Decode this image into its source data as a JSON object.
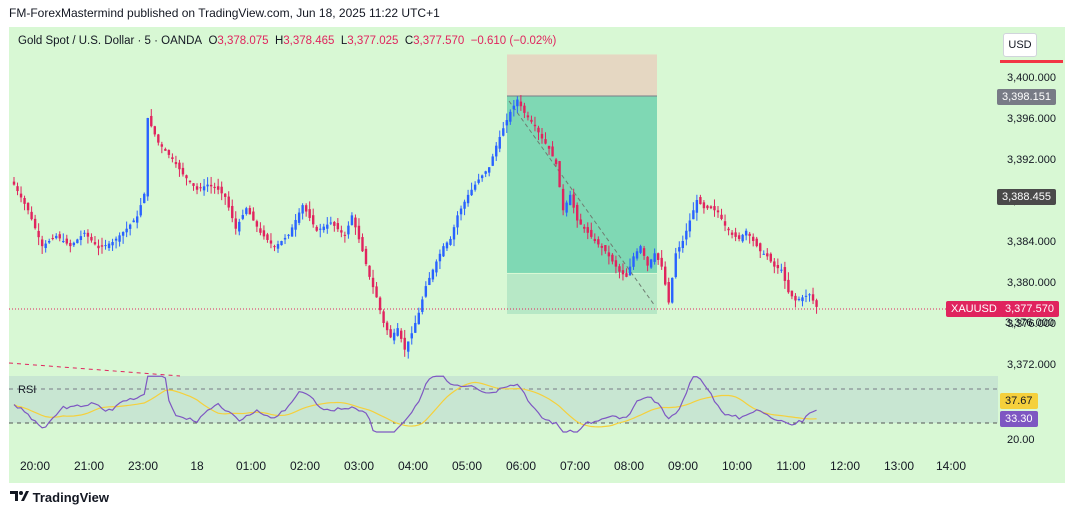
{
  "header": {
    "text": "FM-ForexMastermind published on TradingView.com, Jun 18, 2025 11:22 UTC+1"
  },
  "legend": {
    "symbol": "Gold Spot / U.S. Dollar · 5 · OANDA",
    "o_key": "O",
    "o_val": "3,378.075",
    "h_key": "H",
    "h_val": "3,378.465",
    "l_key": "L",
    "l_val": "3,377.025",
    "c_key": "C",
    "c_val": "3,377.570",
    "chg": "−0.610 (−0.02%)"
  },
  "currency_button": "USD",
  "price_tags": {
    "upper": "3,398.151",
    "mid": "3,388.455",
    "symbol": "XAUUSD",
    "last": "3,377.570",
    "hidden": "3,376.000"
  },
  "rsi_panel": {
    "label": "RSI",
    "ma_value": "37.67",
    "rsi_value": "33.30",
    "level_20": "20.00"
  },
  "footer": {
    "brand": "TradingView"
  },
  "colors": {
    "up": "#2962ff",
    "down": "#e0245e",
    "bg": "#d8f8d4",
    "target": "#7fd8b4",
    "stop": "#e5d7c2",
    "rsi": "#7e57c2",
    "rsi_ma": "#f5d03c"
  },
  "chart_data": {
    "type": "candlestick",
    "title": "Gold Spot / U.S. Dollar · 5 · OANDA",
    "y_ticks": [
      "3,400.000",
      "3,396.000",
      "3,392.000",
      "3,388.000",
      "3,384.000",
      "3,380.000",
      "3,376.000",
      "3,372.000"
    ],
    "y_tick_values": [
      3400,
      3396,
      3392,
      3388,
      3384,
      3380,
      3376,
      3372
    ],
    "ylim": [
      3371,
      3405
    ],
    "x_ticks": [
      "20:00",
      "21:00",
      "23:00",
      "18",
      "01:00",
      "02:00",
      "03:00",
      "04:00",
      "05:00",
      "06:00",
      "07:00",
      "08:00",
      "09:00",
      "10:00",
      "11:00",
      "12:00",
      "13:00",
      "14:00"
    ],
    "last_price": 3377.57,
    "position": {
      "type": "short",
      "entry": 3398.151,
      "stop": 3402.2,
      "target": 3377.2
    },
    "close_path": [
      [
        0,
        3389.5
      ],
      [
        4,
        3387.0
      ],
      [
        8,
        3383.5
      ],
      [
        12,
        3384.5
      ],
      [
        16,
        3383.5
      ],
      [
        20,
        3384.8
      ],
      [
        24,
        3383.3
      ],
      [
        28,
        3383.9
      ],
      [
        32,
        3385.2
      ],
      [
        35,
        3386.4
      ],
      [
        37,
        3388.6
      ],
      [
        38,
        3396.0
      ],
      [
        41,
        3393.6
      ],
      [
        45,
        3392.0
      ],
      [
        48,
        3390.5
      ],
      [
        52,
        3389.0
      ],
      [
        55,
        3389.5
      ],
      [
        58,
        3389.0
      ],
      [
        60,
        3388.3
      ],
      [
        63,
        3385.2
      ],
      [
        66,
        3387.2
      ],
      [
        70,
        3384.8
      ],
      [
        74,
        3383.4
      ],
      [
        78,
        3384.6
      ],
      [
        82,
        3387.5
      ],
      [
        86,
        3385.0
      ],
      [
        90,
        3385.8
      ],
      [
        94,
        3384.5
      ],
      [
        96,
        3386.5
      ],
      [
        99,
        3383.0
      ],
      [
        101,
        3380.5
      ],
      [
        103,
        3378.5
      ],
      [
        105,
        3376.0
      ],
      [
        107,
        3374.6
      ],
      [
        109,
        3375.5
      ],
      [
        111,
        3373.4
      ],
      [
        113,
        3375.0
      ],
      [
        115,
        3377.0
      ],
      [
        117,
        3379.6
      ],
      [
        120,
        3382.0
      ],
      [
        122,
        3383.5
      ],
      [
        124,
        3384.2
      ],
      [
        126,
        3386.5
      ],
      [
        129,
        3388.5
      ],
      [
        132,
        3390.0
      ],
      [
        135,
        3391.2
      ],
      [
        137,
        3393.3
      ],
      [
        139,
        3395.0
      ],
      [
        141,
        3396.6
      ],
      [
        143,
        3397.8
      ],
      [
        145,
        3396.5
      ],
      [
        148,
        3395.2
      ],
      [
        150,
        3394.0
      ],
      [
        152,
        3393.0
      ],
      [
        154,
        3391.5
      ],
      [
        156,
        3387.0
      ],
      [
        158,
        3388.5
      ],
      [
        160,
        3386.0
      ],
      [
        162,
        3385.2
      ],
      [
        165,
        3384.0
      ],
      [
        168,
        3383.0
      ],
      [
        170,
        3382.0
      ],
      [
        172,
        3381.0
      ],
      [
        174,
        3380.5
      ],
      [
        176,
        3382.5
      ],
      [
        178,
        3383.5
      ],
      [
        180,
        3381.6
      ],
      [
        182,
        3382.8
      ],
      [
        184,
        3381.5
      ],
      [
        186,
        3378.0
      ],
      [
        188,
        3382.8
      ],
      [
        190,
        3384.0
      ],
      [
        192,
        3386.0
      ],
      [
        194,
        3388.0
      ],
      [
        196,
        3387.2
      ],
      [
        198,
        3387.2
      ],
      [
        200,
        3386.8
      ],
      [
        202,
        3385.5
      ],
      [
        204,
        3384.6
      ],
      [
        206,
        3384.2
      ],
      [
        208,
        3385.0
      ],
      [
        210,
        3384.0
      ],
      [
        212,
        3383.0
      ],
      [
        214,
        3382.5
      ],
      [
        216,
        3381.5
      ],
      [
        218,
        3381.2
      ],
      [
        220,
        3379.0
      ],
      [
        222,
        3378.2
      ],
      [
        224,
        3378.5
      ],
      [
        226,
        3378.8
      ],
      [
        228,
        3377.57
      ]
    ],
    "rsi": {
      "levels": [
        70,
        30
      ],
      "rsi_last": 33.3,
      "ma_last": 37.67
    }
  }
}
